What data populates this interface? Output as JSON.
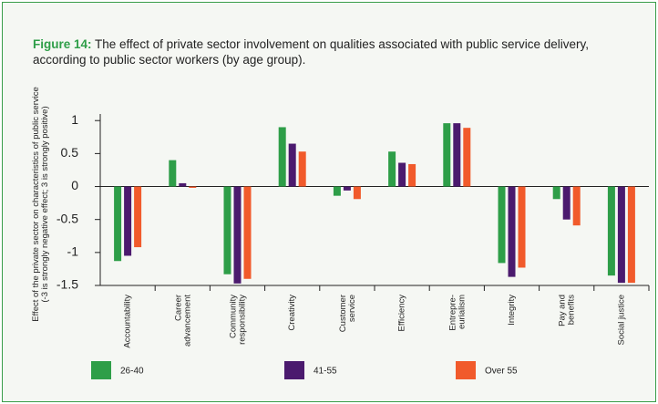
{
  "chart_data": {
    "type": "bar",
    "title_label": "Figure 14:",
    "title": "The effect of private sector involvement on qualities associated with public service delivery, according to public sector workers (by age group).",
    "y_label": "Effect of the private sector on characteristics of public service\n(-3 is strongly negative effect; 3 is strongly positive)",
    "categories": [
      "Accountability",
      "Career\nadvancement",
      "Community\nresponsibility",
      "Creativity",
      "Customer\nservice",
      "Efficiency",
      "Entrepre-\neurialism",
      "Integrity",
      "Pay and\nbenefits",
      "Social justice"
    ],
    "series": [
      {
        "name": "26-40",
        "color": "#2e9e48",
        "values": [
          -1.13,
          0.4,
          -1.33,
          0.9,
          -0.14,
          0.53,
          0.96,
          -1.16,
          -0.19,
          -1.35
        ]
      },
      {
        "name": "41-55",
        "color": "#4b1a6e",
        "values": [
          -1.05,
          0.05,
          -1.47,
          0.65,
          -0.06,
          0.36,
          0.96,
          -1.37,
          -0.5,
          -1.46
        ]
      },
      {
        "name": "Over 55",
        "color": "#f15a2b",
        "values": [
          -0.92,
          -0.02,
          -1.4,
          0.53,
          -0.19,
          0.34,
          0.89,
          -1.23,
          -0.59,
          -1.46
        ]
      }
    ],
    "ylim": [
      -1.5,
      1.1
    ],
    "yticks": [
      1,
      0.5,
      0,
      -0.5,
      -1,
      -1.5
    ]
  }
}
